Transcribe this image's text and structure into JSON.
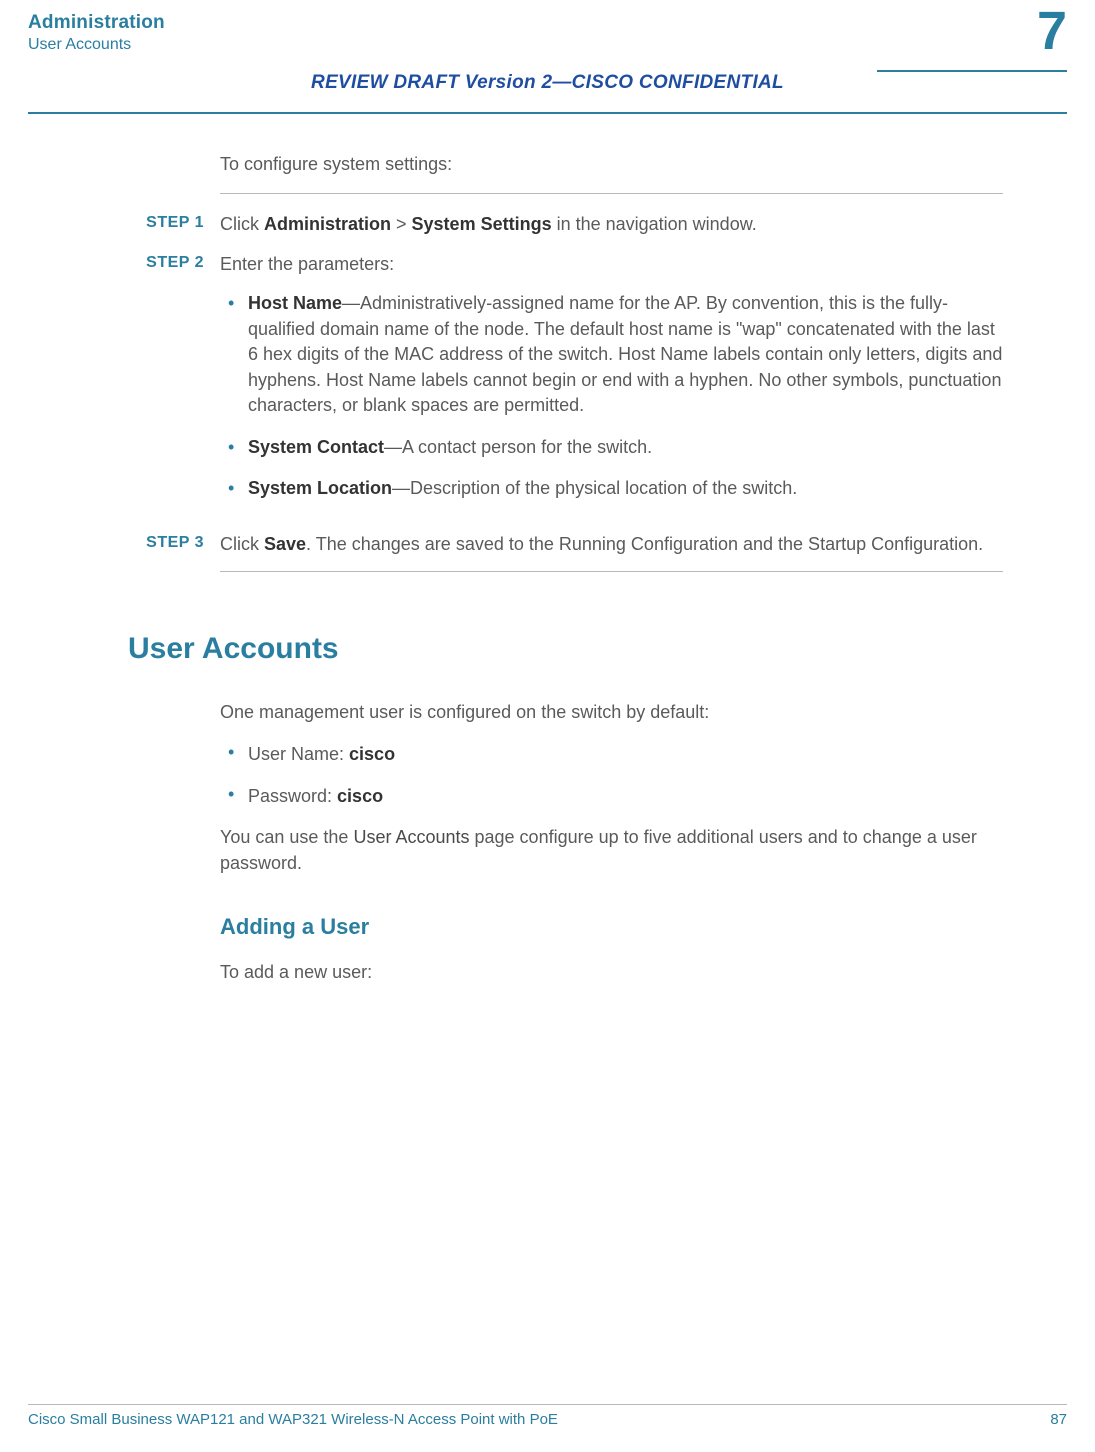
{
  "colors": {
    "accent": "#2a7ea0",
    "draft": "#1f4ea1",
    "body_text": "#5a5a5a",
    "bold_text": "#333333",
    "rule_light": "#b9b9b9",
    "background": "#ffffff"
  },
  "typography": {
    "body_fontsize": 18,
    "step_label_fontsize": 16,
    "h1_fontsize": 30,
    "h2_fontsize": 22,
    "chapter_fontsize": 54,
    "footer_fontsize": 15
  },
  "header": {
    "title": "Administration",
    "subtitle": "User Accounts",
    "chapter_number": "7",
    "review_draft": "REVIEW DRAFT  Version 2—CISCO CONFIDENTIAL"
  },
  "intro_text": "To configure system settings:",
  "steps": [
    {
      "label": "STEP  1",
      "prefix": "Click ",
      "bold1": "Administration",
      "mid": " > ",
      "bold2": "System Settings",
      "suffix": " in the navigation window."
    },
    {
      "label": "STEP  2",
      "text": "Enter the parameters:",
      "bullets": [
        {
          "bold": "Host Name",
          "rest": "—Administratively-assigned name for the AP. By convention, this is the fully-qualified domain name of the node. The default host name is \"wap\" concatenated with the last 6 hex digits of the MAC address of the switch. Host Name labels contain only letters, digits and hyphens. Host Name labels cannot begin or end with a hyphen. No other symbols, punctuation characters, or blank spaces are permitted."
        },
        {
          "bold": "System Contact",
          "rest": "—A contact person for the switch."
        },
        {
          "bold": "System Location",
          "rest": "—Description of the physical location of the switch."
        }
      ]
    },
    {
      "label": "STEP  3",
      "prefix": "Click ",
      "bold1": "Save",
      "suffix": ". The changes are saved to the Running Configuration and the Startup Configuration."
    }
  ],
  "section": {
    "title": "User Accounts",
    "intro": "One management user is configured on the switch by default:",
    "defaults": [
      {
        "label": "User Name: ",
        "value": "cisco"
      },
      {
        "label": "Password: ",
        "value": "cisco"
      }
    ],
    "usage_prefix": "You can use the ",
    "usage_ref": "User Accounts",
    "usage_suffix": " page configure up to five additional users and to change a user password.",
    "sub_title": "Adding a User",
    "sub_intro": "To add a new user:"
  },
  "footer": {
    "product": "Cisco Small Business WAP121 and WAP321 Wireless-N Access Point with PoE",
    "page": "87"
  }
}
